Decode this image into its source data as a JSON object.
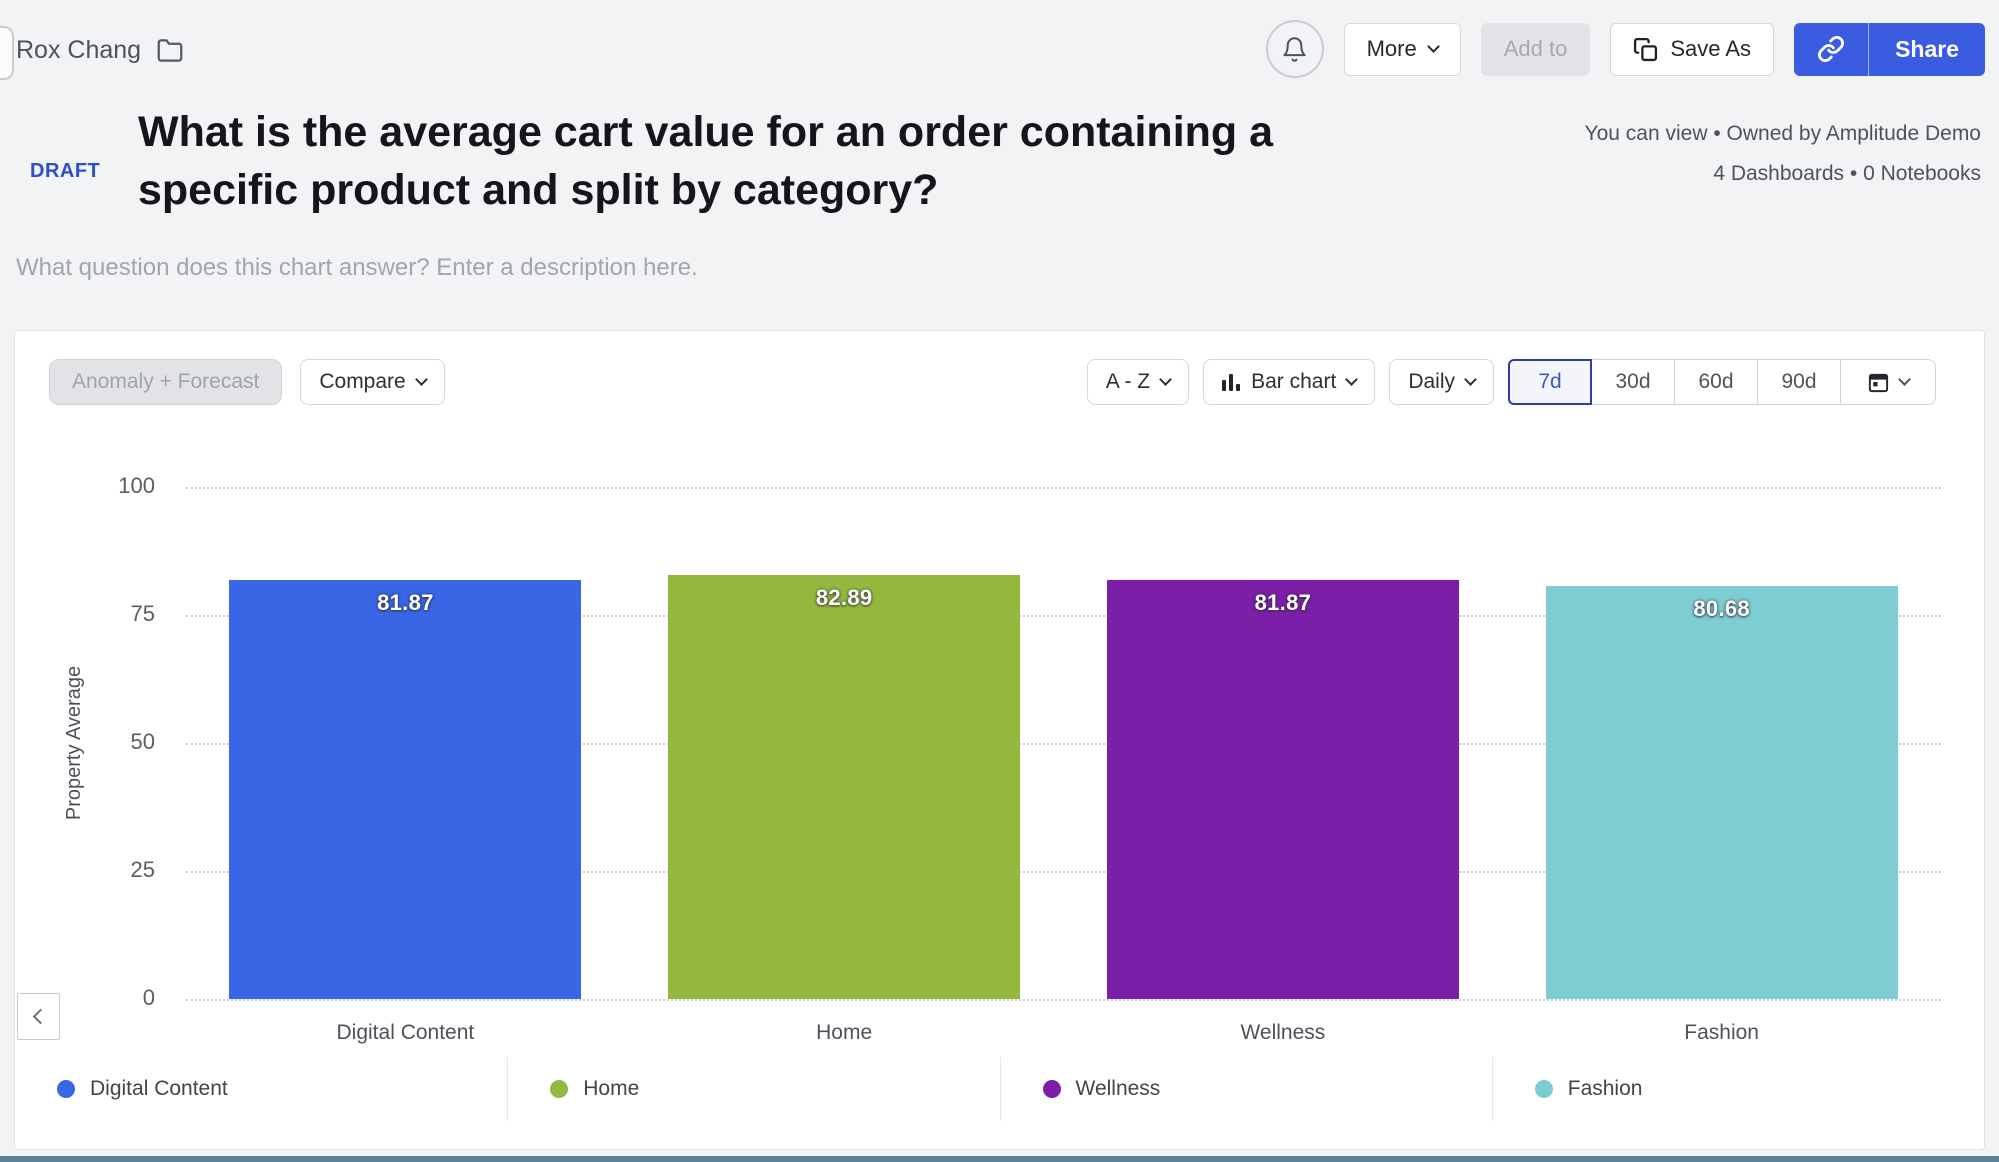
{
  "header": {
    "owner": "Rox Chang",
    "more": "More",
    "add_to": "Add to",
    "save_as": "Save As",
    "share": "Share"
  },
  "title_block": {
    "badge": "DRAFT",
    "title": "What is the average cart value for an order containing a specific product and split by category?",
    "meta_line1": "You can view • Owned by Amplitude Demo",
    "meta_line2": "4 Dashboards • 0 Notebooks",
    "description_placeholder": "What question does this chart answer? Enter a description here."
  },
  "toolbar": {
    "anomaly_forecast": "Anomaly + Forecast",
    "compare": "Compare",
    "sort": "A - Z",
    "chart_type": "Bar chart",
    "interval": "Daily",
    "ranges": [
      "7d",
      "30d",
      "60d",
      "90d"
    ],
    "selected_range": "7d"
  },
  "chart_data": {
    "type": "bar",
    "title": "",
    "ylabel": "Property Average",
    "categories": [
      "Digital Content",
      "Home",
      "Wellness",
      "Fashion"
    ],
    "values": [
      81.87,
      82.89,
      81.87,
      80.68
    ],
    "value_labels": [
      "81.87",
      "82.89",
      "81.87",
      "80.68"
    ],
    "colors": [
      "#3866e4",
      "#94b83e",
      "#7c1fa8",
      "#7ecdd3"
    ],
    "ylim": [
      0,
      100
    ],
    "yticks": [
      0,
      25,
      50,
      75,
      100
    ],
    "grid": "horizontal-dotted",
    "legend_position": "bottom",
    "legend": [
      "Digital Content",
      "Home",
      "Wellness",
      "Fashion"
    ]
  },
  "theme": {
    "primary_blue": "#3a5ce0",
    "draft_blue": "#2b4ec9",
    "page_bg": "#f2f3f5"
  }
}
